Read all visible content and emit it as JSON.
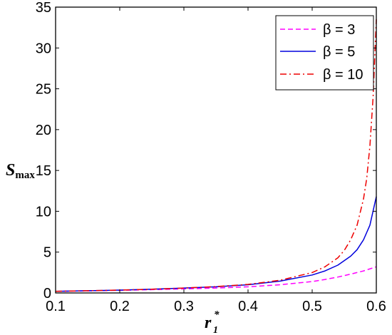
{
  "chart_data": {
    "type": "line",
    "title": "",
    "xlabel": "r",
    "xlabel_sub": "1",
    "xlabel_sup": "*",
    "ylabel": "S",
    "ylabel_sub": "max",
    "xlim": [
      0.1,
      0.6
    ],
    "ylim": [
      0,
      35
    ],
    "xticks": [
      "0.1",
      "0.2",
      "0.3",
      "0.4",
      "0.5",
      "0.6"
    ],
    "yticks": [
      "0",
      "5",
      "10",
      "15",
      "20",
      "25",
      "30",
      "35"
    ],
    "grid": false,
    "legend_position": "top-right",
    "series": [
      {
        "name": "β = 3",
        "color": "#ff00ff",
        "style": "dashed",
        "x": [
          0.1,
          0.15,
          0.2,
          0.25,
          0.3,
          0.35,
          0.4,
          0.45,
          0.5,
          0.52,
          0.54,
          0.56,
          0.58,
          0.6
        ],
        "y": [
          0.2,
          0.25,
          0.32,
          0.4,
          0.5,
          0.6,
          0.75,
          1.0,
          1.4,
          1.65,
          1.95,
          2.3,
          2.7,
          3.2
        ]
      },
      {
        "name": "β = 5",
        "color": "#0000dd",
        "style": "solid",
        "x": [
          0.1,
          0.15,
          0.2,
          0.25,
          0.3,
          0.35,
          0.4,
          0.45,
          0.5,
          0.52,
          0.54,
          0.56,
          0.57,
          0.58,
          0.59,
          0.6
        ],
        "y": [
          0.2,
          0.27,
          0.35,
          0.45,
          0.6,
          0.75,
          1.0,
          1.45,
          2.2,
          2.7,
          3.4,
          4.5,
          5.3,
          6.5,
          8.3,
          11.8
        ]
      },
      {
        "name": "β = 10",
        "color": "#ee0000",
        "style": "dashdot",
        "x": [
          0.1,
          0.15,
          0.2,
          0.25,
          0.3,
          0.35,
          0.4,
          0.45,
          0.5,
          0.52,
          0.54,
          0.55,
          0.56,
          0.57,
          0.58,
          0.585,
          0.59,
          0.595,
          0.6
        ],
        "y": [
          0.2,
          0.27,
          0.35,
          0.45,
          0.6,
          0.78,
          1.05,
          1.55,
          2.5,
          3.2,
          4.3,
          5.2,
          6.5,
          8.3,
          11.5,
          14.0,
          18.0,
          24.0,
          33.5
        ]
      }
    ]
  }
}
